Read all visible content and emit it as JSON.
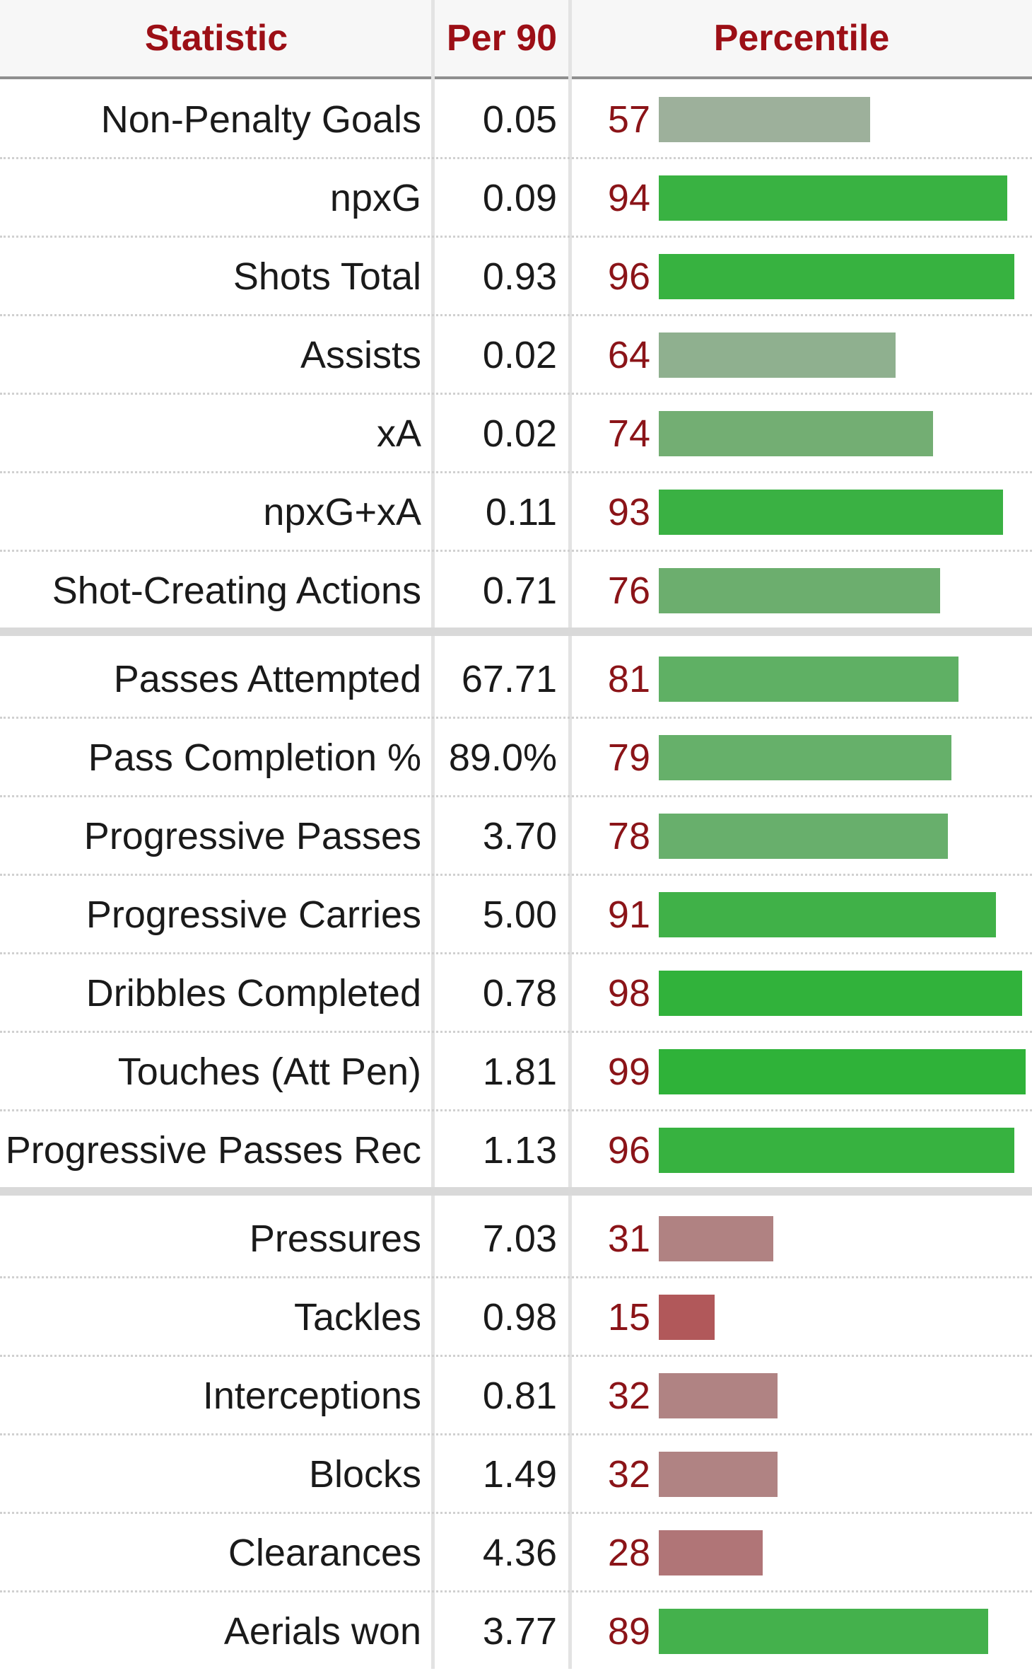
{
  "header": {
    "statistic": "Statistic",
    "per90": "Per 90",
    "percentile": "Percentile"
  },
  "colors": {
    "header_text": "#9c0f16",
    "percentile_text": "#8b1418",
    "high": "#2eae38",
    "mid_green": "#6cb371",
    "muted_green": "#9db39e",
    "low": "#b0585c",
    "muted_red": "#b48483"
  },
  "rows": [
    {
      "stat": "Non-Penalty Goals",
      "per90": "0.05",
      "pct": "57",
      "value": 57,
      "color": "#9db09b"
    },
    {
      "stat": "npxG",
      "per90": "0.09",
      "pct": "94",
      "value": 94,
      "color": "#39b242"
    },
    {
      "stat": "Shots Total",
      "per90": "0.93",
      "pct": "96",
      "value": 96,
      "color": "#37b240"
    },
    {
      "stat": "Assists",
      "per90": "0.02",
      "pct": "64",
      "value": 64,
      "color": "#8fb08f"
    },
    {
      "stat": "xA",
      "per90": "0.02",
      "pct": "74",
      "value": 74,
      "color": "#73ae73"
    },
    {
      "stat": "npxG+xA",
      "per90": "0.11",
      "pct": "93",
      "value": 93,
      "color": "#3ab143"
    },
    {
      "stat": "Shot-Creating Actions",
      "per90": "0.71",
      "pct": "76",
      "value": 76,
      "color": "#6cae6e"
    },
    {
      "stat": "Passes Attempted",
      "per90": "67.71",
      "pct": "81",
      "value": 81,
      "color": "#5fb064"
    },
    {
      "stat": "Pass Completion %",
      "per90": "89.0%",
      "pct": "79",
      "value": 79,
      "color": "#66b06a"
    },
    {
      "stat": "Progressive Passes",
      "per90": "3.70",
      "pct": "78",
      "value": 78,
      "color": "#68af6c"
    },
    {
      "stat": "Progressive Carries",
      "per90": "5.00",
      "pct": "91",
      "value": 91,
      "color": "#40b148"
    },
    {
      "stat": "Dribbles Completed",
      "per90": "0.78",
      "pct": "98",
      "value": 98,
      "color": "#31b23b"
    },
    {
      "stat": "Touches (Att Pen)",
      "per90": "1.81",
      "pct": "99",
      "value": 99,
      "color": "#2fb239"
    },
    {
      "stat": "Progressive Passes Rec",
      "per90": "1.13",
      "pct": "96",
      "value": 96,
      "color": "#37b240"
    },
    {
      "stat": "Pressures",
      "per90": "7.03",
      "pct": "31",
      "value": 31,
      "color": "#b08282"
    },
    {
      "stat": "Tackles",
      "per90": "0.98",
      "pct": "15",
      "value": 15,
      "color": "#b1585a"
    },
    {
      "stat": "Interceptions",
      "per90": "0.81",
      "pct": "32",
      "value": 32,
      "color": "#b08383"
    },
    {
      "stat": "Blocks",
      "per90": "1.49",
      "pct": "32",
      "value": 32,
      "color": "#b08383"
    },
    {
      "stat": "Clearances",
      "per90": "4.36",
      "pct": "28",
      "value": 28,
      "color": "#b07577"
    },
    {
      "stat": "Aerials won",
      "per90": "3.77",
      "pct": "89",
      "value": 89,
      "color": "#44b14c"
    }
  ]
}
